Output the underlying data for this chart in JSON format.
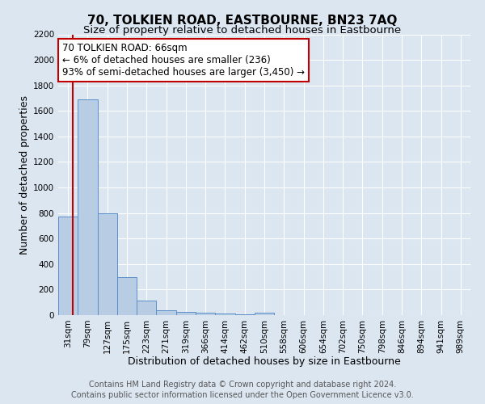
{
  "title": "70, TOLKIEN ROAD, EASTBOURNE, BN23 7AQ",
  "subtitle": "Size of property relative to detached houses in Eastbourne",
  "xlabel": "Distribution of detached houses by size in Eastbourne",
  "ylabel": "Number of detached properties",
  "categories": [
    "31sqm",
    "79sqm",
    "127sqm",
    "175sqm",
    "223sqm",
    "271sqm",
    "319sqm",
    "366sqm",
    "414sqm",
    "462sqm",
    "510sqm",
    "558sqm",
    "606sqm",
    "654sqm",
    "702sqm",
    "750sqm",
    "798sqm",
    "846sqm",
    "894sqm",
    "941sqm",
    "989sqm"
  ],
  "values": [
    770,
    1690,
    800,
    295,
    115,
    40,
    25,
    20,
    15,
    5,
    20,
    0,
    0,
    0,
    0,
    0,
    0,
    0,
    0,
    0,
    0
  ],
  "bar_color": "#b8cce4",
  "bar_edge_color": "#5b8fc9",
  "ylim": [
    0,
    2200
  ],
  "yticks": [
    0,
    200,
    400,
    600,
    800,
    1000,
    1200,
    1400,
    1600,
    1800,
    2000,
    2200
  ],
  "property_line_color": "#c00000",
  "annotation_line1": "70 TOLKIEN ROAD: 66sqm",
  "annotation_line2": "← 6% of detached houses are smaller (236)",
  "annotation_line3": "93% of semi-detached houses are larger (3,450) →",
  "annotation_box_color": "#ffffff",
  "annotation_box_edge": "#c00000",
  "footer_line1": "Contains HM Land Registry data © Crown copyright and database right 2024.",
  "footer_line2": "Contains public sector information licensed under the Open Government Licence v3.0.",
  "background_color": "#dce6f1",
  "plot_bg_color": "#dce6f1",
  "grid_color": "#ffffff",
  "title_fontsize": 11,
  "subtitle_fontsize": 9.5,
  "axis_label_fontsize": 9,
  "tick_fontsize": 7.5,
  "annotation_fontsize": 8.5,
  "footer_fontsize": 7
}
